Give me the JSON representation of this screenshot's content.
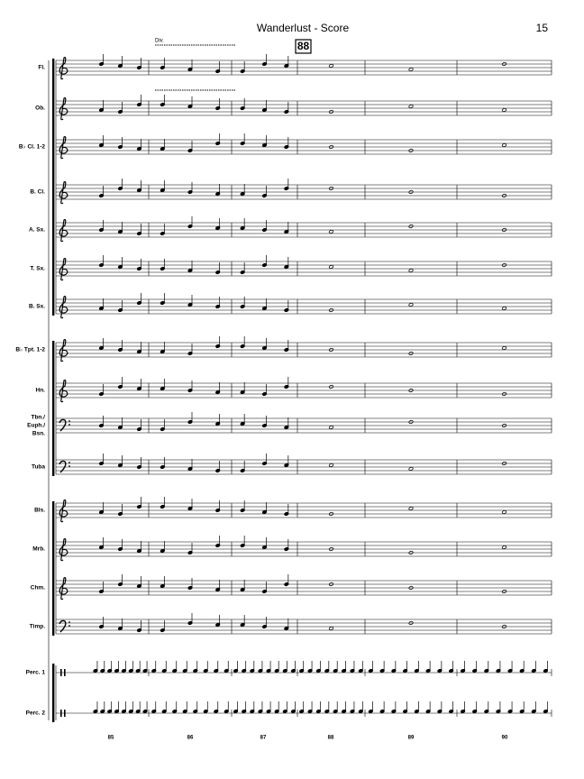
{
  "header": {
    "title": "Wanderlust - Score",
    "page_number": "15"
  },
  "rehearsal_mark": "88",
  "direction": "Div.",
  "staves": [
    {
      "name": [
        "Fl."
      ],
      "clef": "treble"
    },
    {
      "name": [
        "Ob."
      ],
      "clef": "treble"
    },
    {
      "name": [
        "B♭ Cl. 1-2"
      ],
      "clef": "treble"
    },
    {
      "name": [
        "B. Cl."
      ],
      "clef": "treble"
    },
    {
      "name": [
        "A. Sx."
      ],
      "clef": "treble"
    },
    {
      "name": [
        "T. Sx."
      ],
      "clef": "treble"
    },
    {
      "name": [
        "B. Sx."
      ],
      "clef": "treble"
    },
    {
      "name": [
        "B♭ Tpt. 1-2"
      ],
      "clef": "treble"
    },
    {
      "name": [
        "Hn."
      ],
      "clef": "treble"
    },
    {
      "name": [
        "Tbn./",
        "Euph./",
        "Bsn."
      ],
      "clef": "bass"
    },
    {
      "name": [
        "Tuba"
      ],
      "clef": "bass"
    },
    {
      "name": [
        "Bls."
      ],
      "clef": "treble"
    },
    {
      "name": [
        "Mrb."
      ],
      "clef": "treble"
    },
    {
      "name": [
        "Chm."
      ],
      "clef": "treble"
    },
    {
      "name": [
        "Timp."
      ],
      "clef": "bass"
    },
    {
      "name": [
        "Perc. 1"
      ],
      "clef": "percussion"
    },
    {
      "name": [
        "Perc. 2"
      ],
      "clef": "percussion"
    }
  ],
  "measure_numbers": [
    "85",
    "86",
    "87",
    "88",
    "89",
    "90"
  ]
}
